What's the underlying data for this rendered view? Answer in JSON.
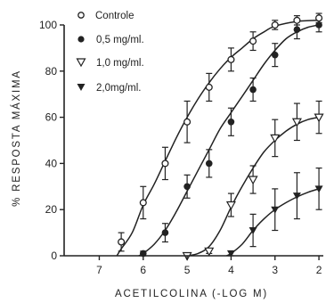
{
  "chart_data": {
    "type": "line",
    "title": "",
    "xlabel": "ACETILCOLINA (-LOG M)",
    "ylabel": "% RESPOSTA MÁXIMA",
    "xlim": [
      7.8,
      1.9
    ],
    "ylim": [
      0,
      100
    ],
    "x_reversed": true,
    "x_ticks": [
      7,
      6,
      5,
      4,
      3,
      2
    ],
    "y_ticks": [
      0,
      20,
      40,
      60,
      80,
      100
    ],
    "x_tick_labels": [
      "7",
      "6",
      "5",
      "4",
      "3",
      "2"
    ],
    "y_tick_labels": [
      "0",
      "20",
      "40",
      "60",
      "80",
      "100"
    ],
    "legend_position": "top-left",
    "grid": false,
    "series": [
      {
        "name": "Controle",
        "marker": "open-circle",
        "points": [
          {
            "x": 6.5,
            "y": 6,
            "err": 4
          },
          {
            "x": 6.0,
            "y": 23,
            "err": 7
          },
          {
            "x": 5.5,
            "y": 40,
            "err": 7
          },
          {
            "x": 5.0,
            "y": 58,
            "err": 9
          },
          {
            "x": 4.5,
            "y": 73,
            "err": 6
          },
          {
            "x": 4.0,
            "y": 85,
            "err": 5
          },
          {
            "x": 3.5,
            "y": 93,
            "err": 4
          },
          {
            "x": 3.0,
            "y": 100,
            "err": 2
          },
          {
            "x": 2.5,
            "y": 102,
            "err": 2
          },
          {
            "x": 2.0,
            "y": 103,
            "err": 2
          }
        ]
      },
      {
        "name": "0,5 mg/ml.",
        "marker": "filled-circle",
        "points": [
          {
            "x": 6.0,
            "y": 1,
            "err": 1
          },
          {
            "x": 5.5,
            "y": 10,
            "err": 4
          },
          {
            "x": 5.0,
            "y": 30,
            "err": 5
          },
          {
            "x": 4.5,
            "y": 40,
            "err": 6
          },
          {
            "x": 4.0,
            "y": 58,
            "err": 6
          },
          {
            "x": 3.5,
            "y": 72,
            "err": 5
          },
          {
            "x": 3.0,
            "y": 87,
            "err": 5
          },
          {
            "x": 2.5,
            "y": 98,
            "err": 4
          },
          {
            "x": 2.0,
            "y": 100,
            "err": 3
          }
        ]
      },
      {
        "name": "1,0 mg/ml.",
        "marker": "open-triangle-down",
        "points": [
          {
            "x": 5.0,
            "y": 0,
            "err": 0
          },
          {
            "x": 4.5,
            "y": 2,
            "err": 1
          },
          {
            "x": 4.0,
            "y": 22,
            "err": 5
          },
          {
            "x": 3.5,
            "y": 33,
            "err": 6
          },
          {
            "x": 3.0,
            "y": 51,
            "err": 8
          },
          {
            "x": 2.5,
            "y": 58,
            "err": 8
          },
          {
            "x": 2.0,
            "y": 60,
            "err": 7
          }
        ]
      },
      {
        "name": "2,0mg/ml.",
        "marker": "filled-triangle-down",
        "points": [
          {
            "x": 4.0,
            "y": 1,
            "err": 1
          },
          {
            "x": 3.5,
            "y": 11,
            "err": 7
          },
          {
            "x": 3.0,
            "y": 20,
            "err": 9
          },
          {
            "x": 2.5,
            "y": 26,
            "err": 10
          },
          {
            "x": 2.0,
            "y": 29,
            "err": 9
          }
        ]
      }
    ],
    "curves": [
      {
        "series": "Controle",
        "points": [
          [
            6.6,
            0
          ],
          [
            6.5,
            3
          ],
          [
            6.25,
            10
          ],
          [
            6.0,
            22
          ],
          [
            5.75,
            31
          ],
          [
            5.5,
            41
          ],
          [
            5.25,
            51
          ],
          [
            5.0,
            60
          ],
          [
            4.75,
            68
          ],
          [
            4.5,
            75
          ],
          [
            4.25,
            81
          ],
          [
            4.0,
            86
          ],
          [
            3.75,
            90
          ],
          [
            3.5,
            94
          ],
          [
            3.25,
            97
          ],
          [
            3.0,
            99.5
          ],
          [
            2.5,
            101.5
          ],
          [
            2.0,
            102
          ]
        ]
      },
      {
        "series": "0,5 mg/ml.",
        "points": [
          [
            6.1,
            0
          ],
          [
            6.0,
            1
          ],
          [
            5.75,
            5
          ],
          [
            5.5,
            11
          ],
          [
            5.25,
            19
          ],
          [
            5.0,
            28
          ],
          [
            4.75,
            37
          ],
          [
            4.5,
            46
          ],
          [
            4.25,
            55
          ],
          [
            4.0,
            62
          ],
          [
            3.75,
            69
          ],
          [
            3.5,
            76
          ],
          [
            3.25,
            83
          ],
          [
            3.0,
            89
          ],
          [
            2.75,
            94
          ],
          [
            2.5,
            97
          ],
          [
            2.25,
            99
          ],
          [
            2.0,
            100
          ]
        ]
      },
      {
        "series": "1,0 mg/ml.",
        "points": [
          [
            5.0,
            0
          ],
          [
            4.75,
            1
          ],
          [
            4.5,
            4
          ],
          [
            4.25,
            11
          ],
          [
            4.0,
            21
          ],
          [
            3.75,
            30
          ],
          [
            3.5,
            38
          ],
          [
            3.25,
            45
          ],
          [
            3.0,
            50
          ],
          [
            2.75,
            54
          ],
          [
            2.5,
            57
          ],
          [
            2.25,
            59
          ],
          [
            2.0,
            60
          ]
        ]
      },
      {
        "series": "2,0mg/ml.",
        "points": [
          [
            4.1,
            0
          ],
          [
            4.0,
            1
          ],
          [
            3.75,
            5
          ],
          [
            3.5,
            11
          ],
          [
            3.25,
            16
          ],
          [
            3.0,
            20
          ],
          [
            2.75,
            23
          ],
          [
            2.5,
            25.5
          ],
          [
            2.25,
            27.5
          ],
          [
            2.0,
            29
          ]
        ]
      }
    ]
  }
}
